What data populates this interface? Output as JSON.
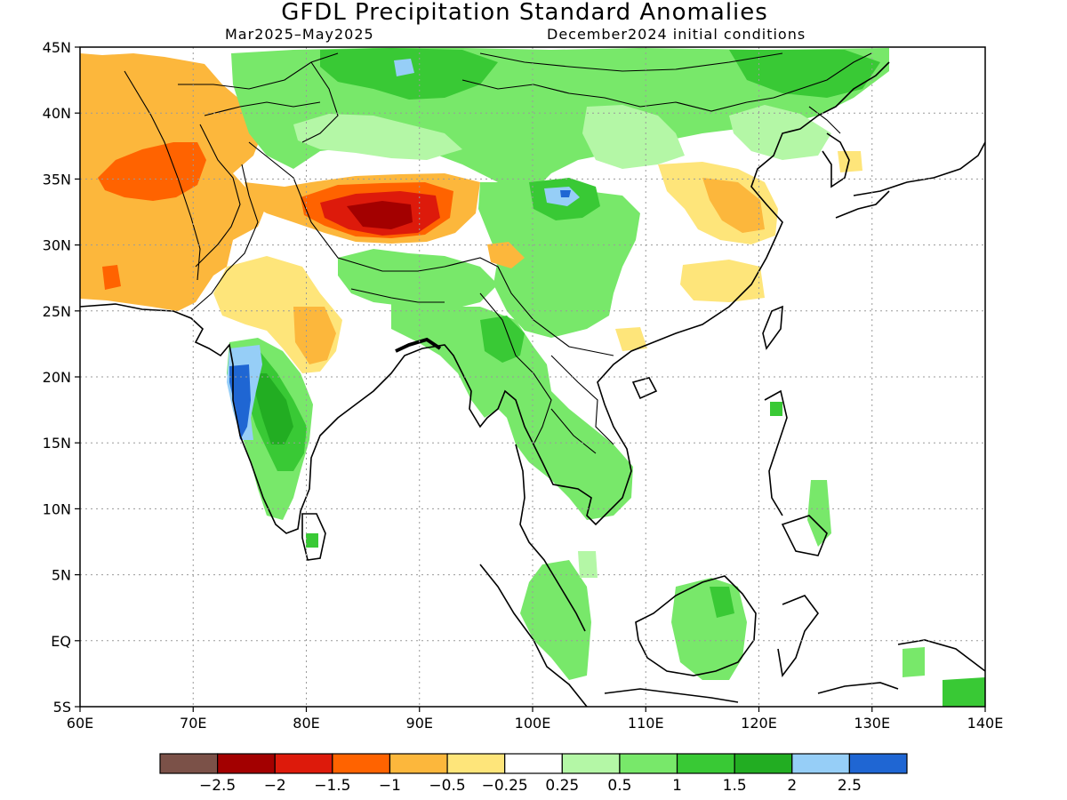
{
  "title": "GFDL Precipitation Standard Anomalies",
  "subtitle_left": "Mar2025–May2025",
  "subtitle_right": "December2024 initial conditions",
  "map": {
    "lon_min": 60,
    "lon_max": 140,
    "lat_min": -5,
    "lat_max": 45,
    "lon_labels": [
      "60E",
      "70E",
      "80E",
      "90E",
      "100E",
      "110E",
      "120E",
      "130E",
      "140E"
    ],
    "lat_labels": [
      "45N",
      "40N",
      "35N",
      "30N",
      "25N",
      "20N",
      "15N",
      "10N",
      "5N",
      "EQ",
      "5S"
    ],
    "grid": "dotted"
  },
  "colorbar": {
    "colors": [
      "#7b5148",
      "#a30000",
      "#dd1a0b",
      "#ff6300",
      "#fcb73c",
      "#fee57a",
      "#ffffff",
      "#b4f7a6",
      "#78e86a",
      "#39c935",
      "#22ad22",
      "#96cef7",
      "#1f66d3"
    ],
    "labels": [
      "−2.5",
      "−2",
      "−1.5",
      "−1",
      "−0.5",
      "−0.25",
      "0.25",
      "0.5",
      "1",
      "1.5",
      "2",
      "2.5"
    ]
  },
  "colors": {
    "orange": "#fcb73c",
    "yellow": "#fee57a",
    "red_orange": "#ff6300",
    "red": "#dd1a0b",
    "dark_red": "#a30000",
    "light_green": "#b4f7a6",
    "green": "#78e86a",
    "mid_green": "#39c935",
    "dark_green": "#22ad22",
    "light_blue": "#96cef7",
    "blue": "#1f66d3"
  }
}
